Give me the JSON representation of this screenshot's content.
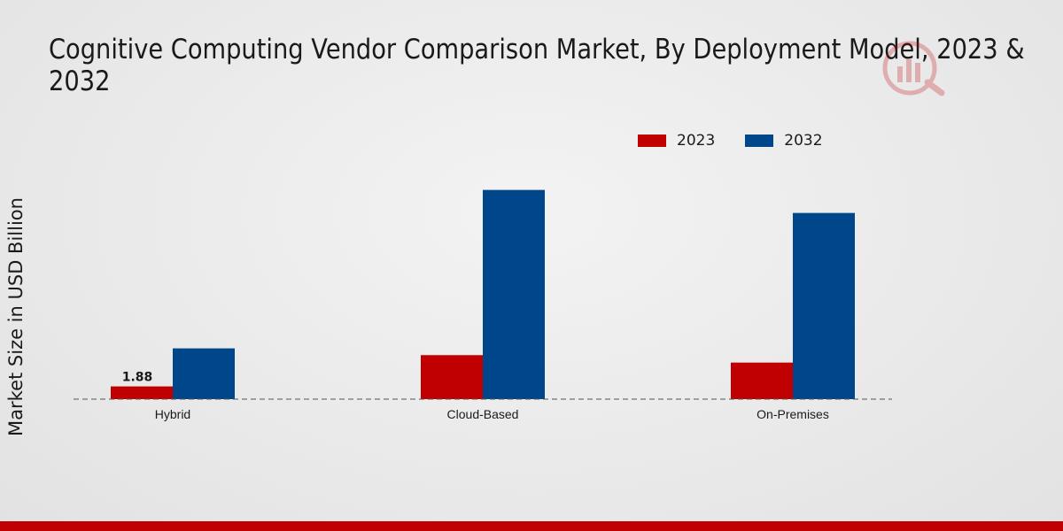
{
  "title_line1": "Cognitive Computing Vendor Comparison Market, By Deployment Model, 2023 &",
  "title_line2": "2032",
  "colors": {
    "2023": "#c00000",
    "2032": "#00468b",
    "accent_bar": "#c00000"
  },
  "chart_data": {
    "type": "bar",
    "title": "Cognitive Computing Vendor Comparison Market, By Deployment Model, 2023 & 2032",
    "xlabel": "",
    "ylabel": "Market Size in USD Billion",
    "categories": [
      "Hybrid",
      "Cloud-Based",
      "On-Premises"
    ],
    "series": [
      {
        "name": "2023",
        "values": [
          1.88,
          6.5,
          5.4
        ]
      },
      {
        "name": "2032",
        "values": [
          7.5,
          30.9,
          27.5
        ]
      }
    ],
    "data_labels": [
      {
        "series": "2023",
        "category": "Hybrid",
        "text": "1.88"
      }
    ],
    "ylim": [
      0,
      40
    ],
    "legend": "top-center",
    "grid": false
  }
}
